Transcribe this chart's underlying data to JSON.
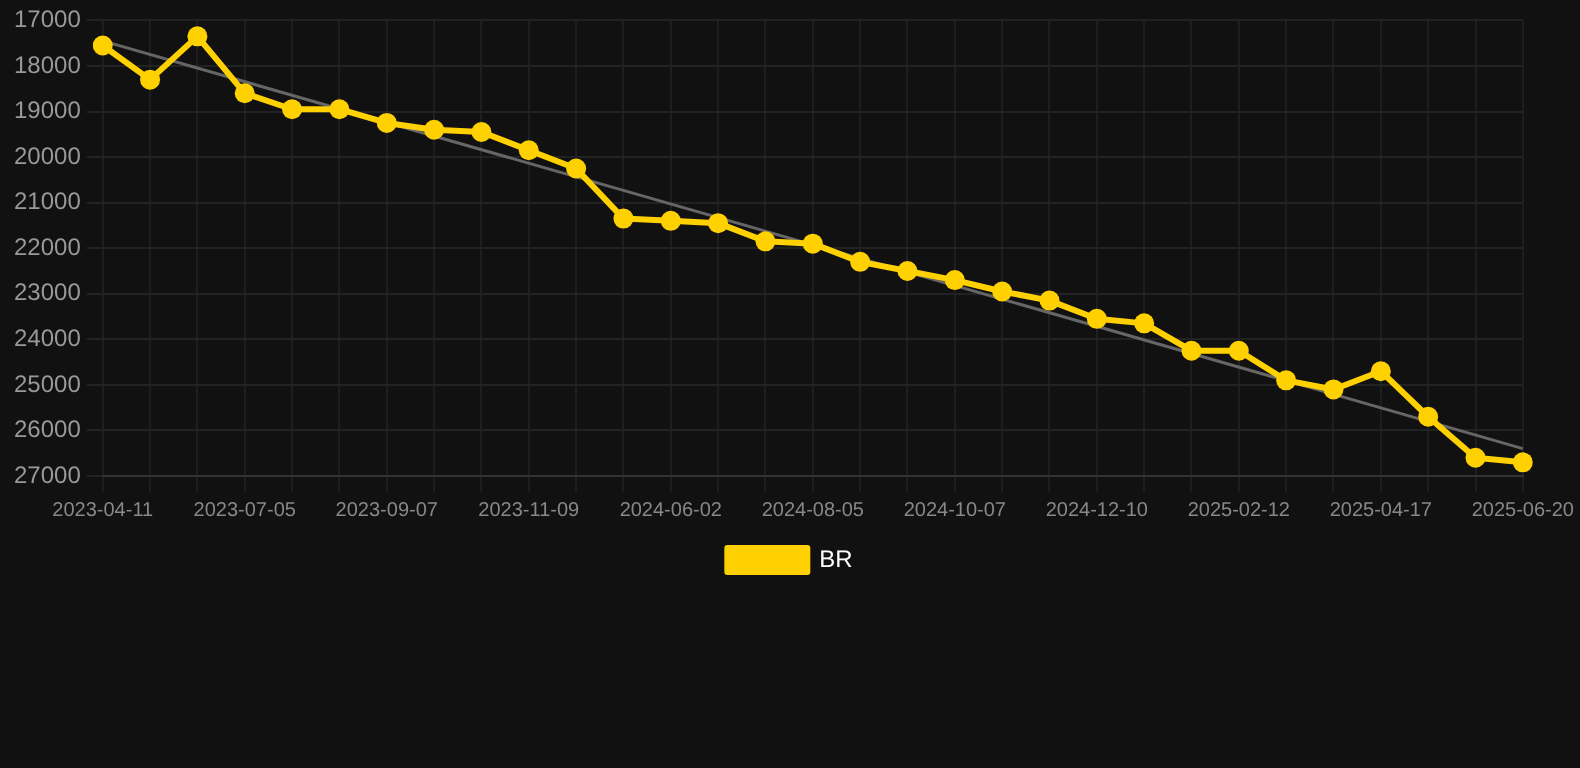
{
  "chart_data": {
    "type": "line",
    "categories": [
      "2023-04-11",
      null,
      null,
      "2023-07-05",
      null,
      null,
      "2023-09-07",
      null,
      null,
      "2023-11-09",
      null,
      null,
      "2024-06-02",
      null,
      null,
      "2024-08-05",
      null,
      null,
      "2024-10-07",
      null,
      null,
      "2024-12-10",
      null,
      null,
      "2025-02-12",
      null,
      null,
      "2025-04-17",
      null,
      null,
      "2025-06-20"
    ],
    "series": [
      {
        "name": "BR",
        "color": "#ffd100",
        "values": [
          17550,
          18300,
          17350,
          18600,
          18950,
          18950,
          19250,
          19400,
          19450,
          19850,
          20250,
          21350,
          21400,
          21450,
          21850,
          21900,
          22300,
          22500,
          22700,
          22950,
          23150,
          23550,
          23650,
          24250,
          24250,
          24900,
          25100,
          24700,
          25700,
          26600,
          26700
        ]
      },
      {
        "type": "line",
        "color": "#666666",
        "marker": "none",
        "values": [
          17450,
          null,
          null,
          null,
          null,
          null,
          null,
          null,
          null,
          null,
          null,
          null,
          null,
          null,
          null,
          null,
          null,
          null,
          null,
          null,
          null,
          null,
          null,
          null,
          null,
          null,
          null,
          null,
          null,
          null,
          26400
        ]
      }
    ],
    "ylim": [
      27000,
      17000
    ],
    "yticks": [
      17000,
      18000,
      19000,
      20000,
      21000,
      22000,
      23000,
      24000,
      25000,
      26000,
      27000
    ],
    "grid": true,
    "legend": "bottom",
    "marker": "circle",
    "line_style": "solid"
  }
}
